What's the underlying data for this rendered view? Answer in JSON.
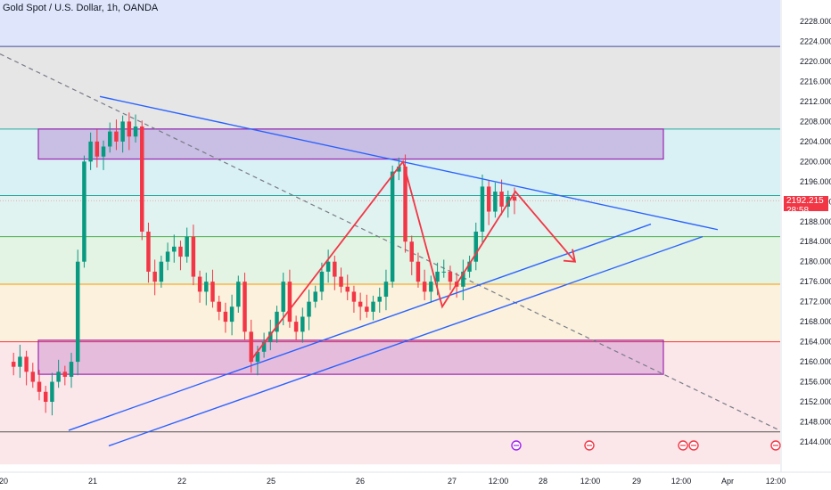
{
  "header": {
    "title": "Gold Spot / U.S. Dollar, 1h, OANDA"
  },
  "last_price": {
    "value": "2192.215",
    "countdown": "28:58",
    "color": "#f23645"
  },
  "colors": {
    "up": "#089981",
    "down": "#f23645",
    "trendline": "#2962ff",
    "zone": "#9c27b0",
    "projection": "#f23645"
  },
  "chart_data": {
    "type": "candlestick",
    "symbol": "XAUUSD",
    "interval": "1h",
    "y_ticks": [
      2144,
      2148,
      2152,
      2156,
      2160,
      2164,
      2168,
      2172,
      2176,
      2180,
      2184,
      2188,
      2192,
      2196,
      2200,
      2204,
      2208,
      2212,
      2216,
      2220,
      2224,
      2228
    ],
    "y_tick_labels": [
      "2144.000",
      "2148.000",
      "2152.000",
      "2156.000",
      "2160.000",
      "2164.000",
      "2168.000",
      "2172.000",
      "2176.000",
      "2180.000",
      "2184.000",
      "2188.000",
      "2192.000",
      "2196.000",
      "2200.000",
      "2204.000",
      "2208.000",
      "2212.000",
      "2216.000",
      "2220.000",
      "2224.000",
      "2228.000"
    ],
    "ylim": [
      2141.5,
      2230.5
    ],
    "x_labels": [
      "20",
      "21",
      "22",
      "25",
      "26",
      "27",
      "12:00",
      "28",
      "12:00",
      "29",
      "12:00",
      "Apr",
      "12:00"
    ],
    "horizontal_levels": [
      2223,
      2206.5,
      2193.2,
      2185,
      2175.5,
      2164,
      2146
    ],
    "zones": [
      {
        "from": 2200.5,
        "to": 2206.5
      },
      {
        "from": 2157.5,
        "to": 2164.3
      }
    ],
    "candle_path": [
      2160,
      2159,
      2161,
      2158,
      2156,
      2154,
      2152,
      2156,
      2158,
      2157,
      2160,
      2180,
      2200,
      2204,
      2201,
      2203,
      2206,
      2204,
      2208,
      2205,
      2207,
      2186,
      2178,
      2176,
      2180,
      2182,
      2183,
      2181,
      2185,
      2177,
      2174,
      2176,
      2172,
      2170,
      2168,
      2171,
      2176,
      2166,
      2160,
      2162,
      2164,
      2166,
      2170,
      2176,
      2168,
      2166,
      2169,
      2172,
      2174,
      2178,
      2180,
      2177,
      2175,
      2174,
      2172,
      2171,
      2170,
      2172,
      2173,
      2176,
      2198,
      2199,
      2184,
      2180,
      2176,
      2174,
      2176,
      2178,
      2178,
      2176,
      2175,
      2178,
      2180,
      2186,
      2195,
      2190,
      2194,
      2191,
      2193,
      2192.2
    ]
  }
}
